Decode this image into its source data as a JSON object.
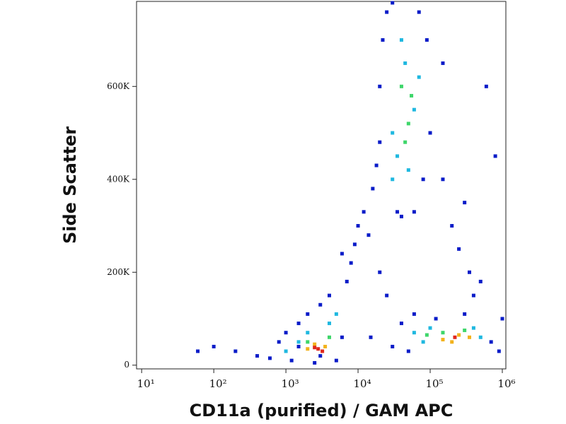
{
  "chart_data": {
    "type": "scatter",
    "xlabel": "CD11a (purified) / GAM APC",
    "ylabel": "Side Scatter",
    "xscale": "log",
    "xlim": [
      8.5,
      1120000
    ],
    "ylim": [
      -8000,
      783000
    ],
    "xticks": [
      {
        "value": 10,
        "label": "10¹"
      },
      {
        "value": 100,
        "label": "10²"
      },
      {
        "value": 1000,
        "label": "10³"
      },
      {
        "value": 10000,
        "label": "10⁴"
      },
      {
        "value": 100000,
        "label": "10⁵"
      },
      {
        "value": 1000000,
        "label": "10⁶"
      }
    ],
    "yticks": [
      0,
      {
        "value": 200000,
        "label": "200K"
      },
      {
        "value": 400000,
        "label": "400K"
      },
      {
        "value": 600000,
        "label": "600K"
      }
    ],
    "series": [
      {
        "color": "#0a1cc8",
        "x": [
          400,
          600,
          800,
          1000,
          1200,
          1500,
          2000,
          2500,
          3000,
          4000,
          5000,
          6000,
          7000,
          8000,
          9000,
          10000,
          12000,
          14000,
          6000,
          16000,
          18000,
          20000,
          20000,
          22000,
          25000,
          30000,
          35000,
          40000,
          60000,
          80000,
          90000,
          70000,
          100000,
          150000,
          200000,
          250000,
          300000,
          350000,
          400000,
          600000,
          800000,
          1000000,
          900000,
          50000,
          40000,
          60000,
          120000,
          300000,
          30000,
          200,
          100,
          60,
          20000,
          25000,
          15000,
          3000,
          1500,
          700000,
          500000,
          150000
        ],
        "values": [
          20000,
          15000,
          50000,
          70000,
          10000,
          90000,
          110000,
          5000,
          130000,
          150000,
          10000,
          60000,
          180000,
          220000,
          260000,
          300000,
          330000,
          280000,
          240000,
          380000,
          430000,
          480000,
          600000,
          700000,
          760000,
          780000,
          330000,
          320000,
          330000,
          400000,
          700000,
          760000,
          500000,
          650000,
          300000,
          250000,
          350000,
          200000,
          150000,
          600000,
          450000,
          100000,
          30000,
          30000,
          90000,
          110000,
          100000,
          110000,
          40000,
          30000,
          40000,
          30000,
          200000,
          150000,
          60000,
          20000,
          40000,
          50000,
          180000,
          400000
        ]
      },
      {
        "color": "#1fb8e0",
        "x": [
          1500,
          2000,
          4000,
          5000,
          1000,
          30000,
          35000,
          40000,
          45000,
          60000,
          70000,
          60000,
          80000,
          400000,
          500000,
          100000,
          30000,
          50000
        ],
        "values": [
          50000,
          70000,
          90000,
          110000,
          30000,
          400000,
          450000,
          700000,
          650000,
          550000,
          620000,
          70000,
          50000,
          80000,
          60000,
          80000,
          500000,
          420000
        ]
      },
      {
        "color": "#3ed66a",
        "x": [
          40000,
          50000,
          55000,
          45000,
          2000,
          4000,
          150000,
          300000,
          90000
        ],
        "values": [
          600000,
          520000,
          580000,
          480000,
          50000,
          60000,
          70000,
          75000,
          65000
        ]
      },
      {
        "color": "#f2b21c",
        "x": [
          2500,
          3500,
          2000,
          150000,
          250000,
          200000,
          350000
        ],
        "values": [
          45000,
          40000,
          35000,
          55000,
          65000,
          50000,
          60000
        ]
      },
      {
        "color": "#e0281c",
        "x": [
          2800,
          3200,
          2500,
          220000
        ],
        "values": [
          35000,
          30000,
          38000,
          60000
        ]
      }
    ]
  }
}
